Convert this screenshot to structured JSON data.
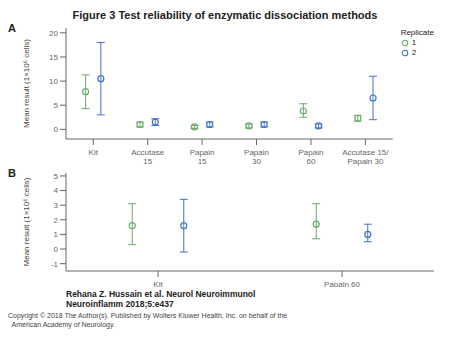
{
  "title": "Figure 3 Test reliability of enzymatic dissociation methods",
  "annotations": [
    "Rehana Z. Hussain et al. Neurol Neuroimmunol\nNeuroinflamm 2018;5:e437",
    "Copyright © 2018 The Author(s). Published by Wolters Kluwer Health, Inc. on behalf of the\n  American Academy of Neurology."
  ],
  "chart_data": [
    {
      "type": "scatter",
      "title": "A",
      "y_label": "Mean result (1×10⁶ cells)",
      "categories": [
        "Kit",
        "Accutase\n15",
        "Papain\n15",
        "Papain\n30",
        "Papain\n60",
        "Accutase 15/\nPapain 30"
      ],
      "ylim": [
        -2,
        21
      ],
      "yticks": [
        0,
        5,
        10,
        15,
        20
      ],
      "grid": false,
      "legend": "upper right",
      "legend_title": "Replicate",
      "series": [
        {
          "name": "1",
          "color": "#6aaa6a",
          "values": [
            7.8,
            1.0,
            0.5,
            0.7,
            3.8,
            2.3
          ],
          "error_low": [
            3.5,
            0.5,
            0.3,
            0.4,
            1.3,
            0.6
          ],
          "error_high": [
            3.5,
            0.5,
            0.3,
            0.4,
            1.5,
            0.6
          ]
        },
        {
          "name": "2",
          "color": "#4472c4",
          "values": [
            10.5,
            1.5,
            1.0,
            1.0,
            0.7,
            6.5
          ],
          "error_low": [
            7.5,
            0.7,
            0.5,
            0.5,
            0.4,
            4.5
          ],
          "error_high": [
            7.5,
            0.7,
            0.5,
            0.5,
            0.4,
            4.5
          ]
        }
      ]
    },
    {
      "type": "scatter",
      "title": "B",
      "y_label": "Mean result (1×10⁶ cells)",
      "categories": [
        "Kit",
        "Papain 60"
      ],
      "ylim": [
        -1.5,
        5.2
      ],
      "yticks": [
        -1,
        0,
        1,
        2,
        3,
        4,
        5
      ],
      "grid": false,
      "series": [
        {
          "name": "1",
          "color": "#6aaa6a",
          "values": [
            1.6,
            1.7
          ],
          "error_low": [
            1.3,
            1.0
          ],
          "error_high": [
            1.5,
            1.4
          ]
        },
        {
          "name": "2",
          "color": "#4472c4",
          "values": [
            1.6,
            1.0
          ],
          "error_low": [
            1.8,
            0.5
          ],
          "error_high": [
            1.8,
            0.7
          ]
        }
      ]
    }
  ]
}
